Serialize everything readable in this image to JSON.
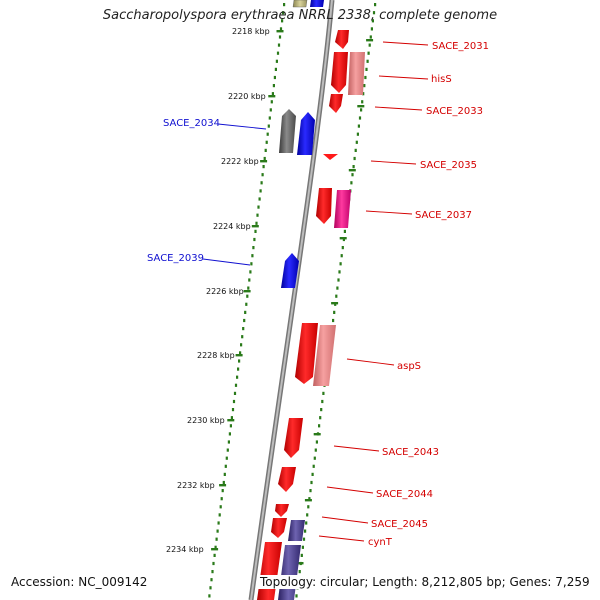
{
  "title": "Saccharopolyspora erythraea NRRL 2338, complete genome",
  "accession": "Accession: NC_009142",
  "topology": "Topology: circular; Length: 8,212,805 bp; Genes: 7,259",
  "ticks": [
    "2218 kbp",
    "2220 kbp",
    "2222 kbp",
    "2224 kbp",
    "2226 kbp",
    "2228 kbp",
    "2230 kbp",
    "2232 kbp",
    "2234 kbp"
  ],
  "labels_reverse": [
    "SACE_2034",
    "SACE_2039"
  ],
  "labels_forward": [
    "SACE_2031",
    "hisS",
    "SACE_2033",
    "SACE_2035",
    "SACE_2037",
    "aspS",
    "SACE_2043",
    "SACE_2044",
    "SACE_2045",
    "cynT"
  ],
  "colors": {
    "forward_gene": "#ff0000",
    "forward_alt": "#f08080",
    "forward_magenta": "#ff1493",
    "reverse_gene": "#0000ff",
    "reverse_gray": "#666666",
    "reverse_purple": "#4b3e8a",
    "backbone": "#8c8c8c",
    "tick": "#2a7a1a"
  }
}
